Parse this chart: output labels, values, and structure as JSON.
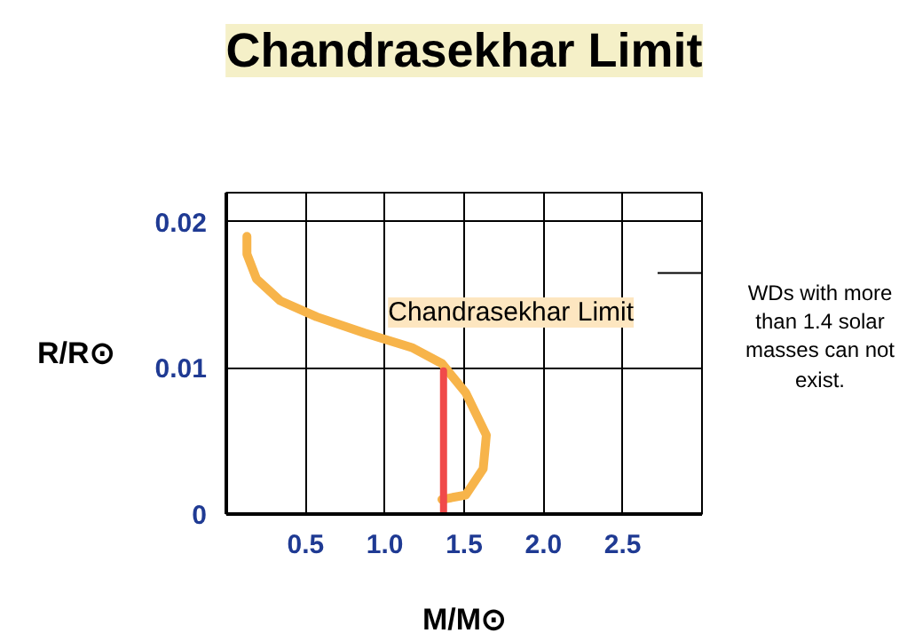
{
  "chart_data": {
    "type": "line",
    "title": "Chandrasekhar Limit",
    "xlabel": "M/M⊙",
    "ylabel": "R/R⊙",
    "xlim": [
      0,
      3.0
    ],
    "ylim": [
      0,
      0.022
    ],
    "xticks": [
      {
        "value": 0.5,
        "label": "0.5"
      },
      {
        "value": 1.0,
        "label": "1.0"
      },
      {
        "value": 1.5,
        "label": "1.5"
      },
      {
        "value": 2.0,
        "label": "2.0"
      },
      {
        "value": 2.5,
        "label": "2.5"
      },
      {
        "value": 3.0,
        "label": null
      }
    ],
    "yticks": [
      {
        "value": 0,
        "label": "0"
      },
      {
        "value": 0.01,
        "label": "0.01"
      },
      {
        "value": 0.02,
        "label": "0.02"
      }
    ],
    "grid": true,
    "series": [
      {
        "color": "#f7b44a",
        "x": [
          0.13,
          0.13,
          0.19,
          0.34,
          0.57,
          0.87,
          1.17,
          1.36,
          1.51,
          1.64,
          1.62,
          1.51,
          1.36
        ],
        "values": [
          0.019,
          0.0178,
          0.0161,
          0.0146,
          0.0135,
          0.0124,
          0.0114,
          0.0103,
          0.0083,
          0.0054,
          0.0031,
          0.0013,
          0.001
        ]
      },
      {
        "color": "#f04a4a",
        "x": [
          1.37,
          1.37
        ],
        "values": [
          0,
          0.0098
        ]
      }
    ],
    "annotations": [
      "Chandrasekhar Limit",
      "WDs with more than 1.4 solar masses can not exist."
    ]
  }
}
